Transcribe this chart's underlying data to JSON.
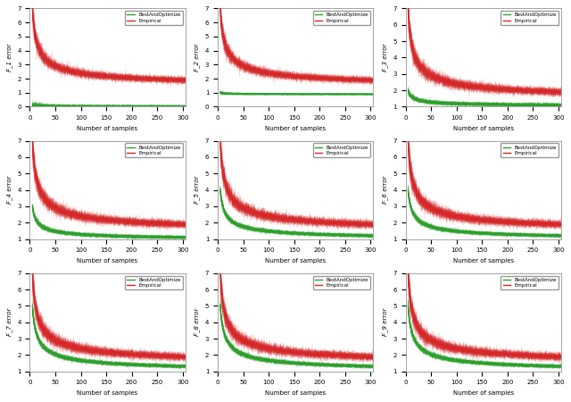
{
  "n_rows": 3,
  "n_cols": 3,
  "x_max": 305,
  "x_ticks": [
    0,
    50,
    100,
    150,
    200,
    250,
    300
  ],
  "xlabel": "Number of samples",
  "legend_labels": [
    "BestAndOptimize",
    "Empirical"
  ],
  "green_color": "#2ca02c",
  "red_color": "#d62728",
  "background_color": "#ffffff",
  "n_lines": 30,
  "row_configs": [
    [
      {
        "gm_s": 0.05,
        "gm_e": 0.04,
        "gs_s": 0.3,
        "gs_e": 0.03,
        "rm_s": 7.0,
        "rm_e": 1.3,
        "rs_s": 0.9,
        "rs_e": 0.12,
        "ylim": [
          0,
          7
        ],
        "ylabel": "F_1 error"
      },
      {
        "gm_s": 1.0,
        "gm_e": 0.88,
        "gs_s": 0.1,
        "gs_e": 0.04,
        "rm_s": 7.0,
        "rm_e": 1.3,
        "rs_s": 0.9,
        "rs_e": 0.12,
        "ylim": [
          0,
          7
        ],
        "ylabel": "F_2 error"
      },
      {
        "gm_s": 2.0,
        "gm_e": 1.0,
        "gs_s": 0.18,
        "gs_e": 0.08,
        "rm_s": 7.0,
        "rm_e": 1.3,
        "rs_s": 0.9,
        "rs_e": 0.12,
        "ylim": [
          1,
          7
        ],
        "ylabel": "F_3 error"
      }
    ],
    [
      {
        "gm_s": 3.0,
        "gm_e": 0.88,
        "gs_s": 0.22,
        "gs_e": 0.07,
        "rm_s": 7.0,
        "rm_e": 1.3,
        "rs_s": 0.9,
        "rs_e": 0.12,
        "ylim": [
          1,
          7
        ],
        "ylabel": "F_4 error"
      },
      {
        "gm_s": 4.0,
        "gm_e": 0.88,
        "gs_s": 0.25,
        "gs_e": 0.07,
        "rm_s": 7.0,
        "rm_e": 1.3,
        "rs_s": 0.9,
        "rs_e": 0.12,
        "ylim": [
          1,
          7
        ],
        "ylabel": "F_5 error"
      },
      {
        "gm_s": 4.0,
        "gm_e": 0.88,
        "gs_s": 0.25,
        "gs_e": 0.07,
        "rm_s": 7.0,
        "rm_e": 1.3,
        "rs_s": 0.9,
        "rs_e": 0.12,
        "ylim": [
          1,
          7
        ],
        "ylabel": "F_6 error"
      }
    ],
    [
      {
        "gm_s": 5.0,
        "gm_e": 0.88,
        "gs_s": 0.3,
        "gs_e": 0.07,
        "rm_s": 7.0,
        "rm_e": 1.3,
        "rs_s": 0.9,
        "rs_e": 0.12,
        "ylim": [
          1,
          7
        ],
        "ylabel": "F_7 error"
      },
      {
        "gm_s": 5.0,
        "gm_e": 0.88,
        "gs_s": 0.3,
        "gs_e": 0.07,
        "rm_s": 7.0,
        "rm_e": 1.3,
        "rs_s": 0.9,
        "rs_e": 0.12,
        "ylim": [
          1,
          7
        ],
        "ylabel": "F_8 error"
      },
      {
        "gm_s": 5.0,
        "gm_e": 0.88,
        "gs_s": 0.3,
        "gs_e": 0.07,
        "rm_s": 7.0,
        "rm_e": 1.3,
        "rs_s": 0.9,
        "rs_e": 0.12,
        "ylim": [
          1,
          7
        ],
        "ylabel": "F_9 error"
      }
    ]
  ]
}
